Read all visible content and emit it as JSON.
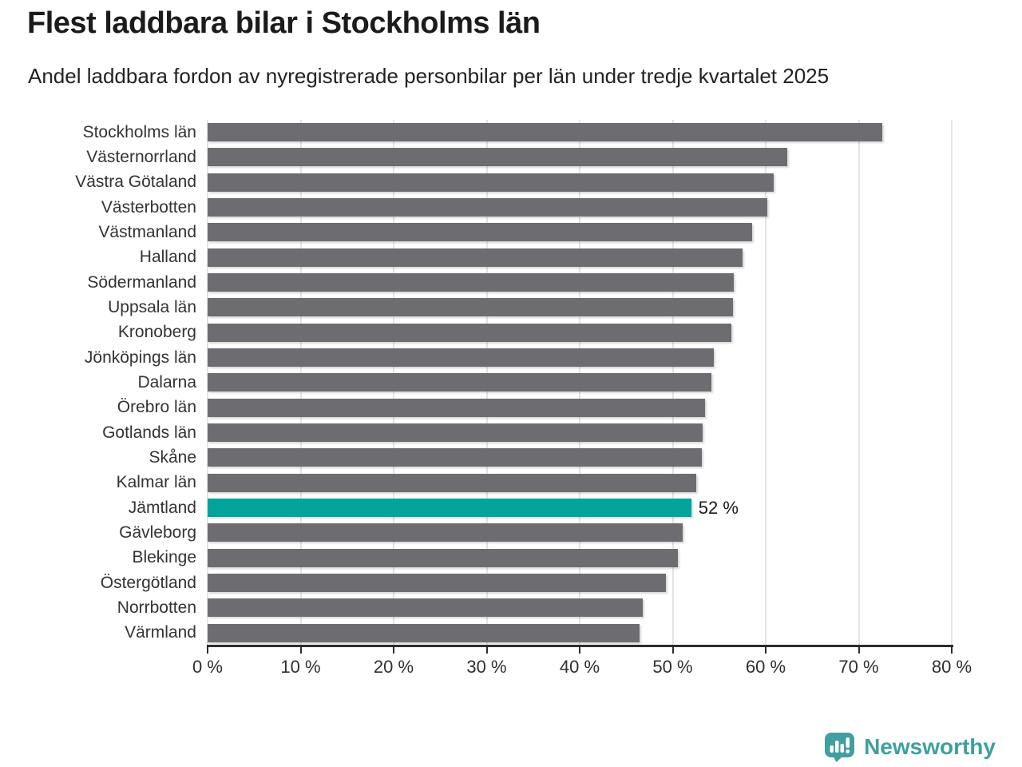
{
  "header": {
    "title": "Flest laddbara bilar i Stockholms län",
    "subtitle": "Andel laddbara fordon av nyregistrerade personbilar per län under tredje kvartalet 2025"
  },
  "chart_data": {
    "type": "bar",
    "orientation": "horizontal",
    "title": "Flest laddbara bilar i Stockholms län",
    "subtitle": "Andel laddbara fordon av nyregistrerade personbilar per län under tredje kvartalet 2025",
    "categories": [
      "Stockholms län",
      "Västernorrland",
      "Västra Götaland",
      "Västerbotten",
      "Västmanland",
      "Halland",
      "Södermanland",
      "Uppsala län",
      "Kronoberg",
      "Jönköpings län",
      "Dalarna",
      "Örebro län",
      "Gotlands län",
      "Skåne",
      "Kalmar län",
      "Jämtland",
      "Gävleborg",
      "Blekinge",
      "Östergötland",
      "Norrbotten",
      "Värmland"
    ],
    "values": [
      72.5,
      62.3,
      60.9,
      60.2,
      58.5,
      57.5,
      56.6,
      56.5,
      56.3,
      54.4,
      54.2,
      53.5,
      53.2,
      53.1,
      52.5,
      52,
      51.1,
      50.6,
      49.3,
      46.8,
      46.4
    ],
    "highlight": {
      "category": "Jämtland",
      "label": "52 %"
    },
    "unit": "%",
    "xlim": [
      0,
      80
    ],
    "x_tick_values": [
      0,
      10,
      20,
      30,
      40,
      50,
      60,
      70,
      80
    ],
    "x_tick_labels": [
      "0 %",
      "10 %",
      "20 %",
      "30 %",
      "40 %",
      "50 %",
      "60 %",
      "70 %",
      "80 %"
    ],
    "grid": true,
    "legend": "none",
    "bar_color": "#6d6d71",
    "highlight_color": "#00a49b",
    "gridline_color": "#e4e4e4",
    "axis_color": "#2d2d2d"
  },
  "footer": {
    "brand": "Newsworthy",
    "brand_color": "#3f9fa0",
    "logo_icon": "bar-chart-speech-bubble-icon"
  }
}
